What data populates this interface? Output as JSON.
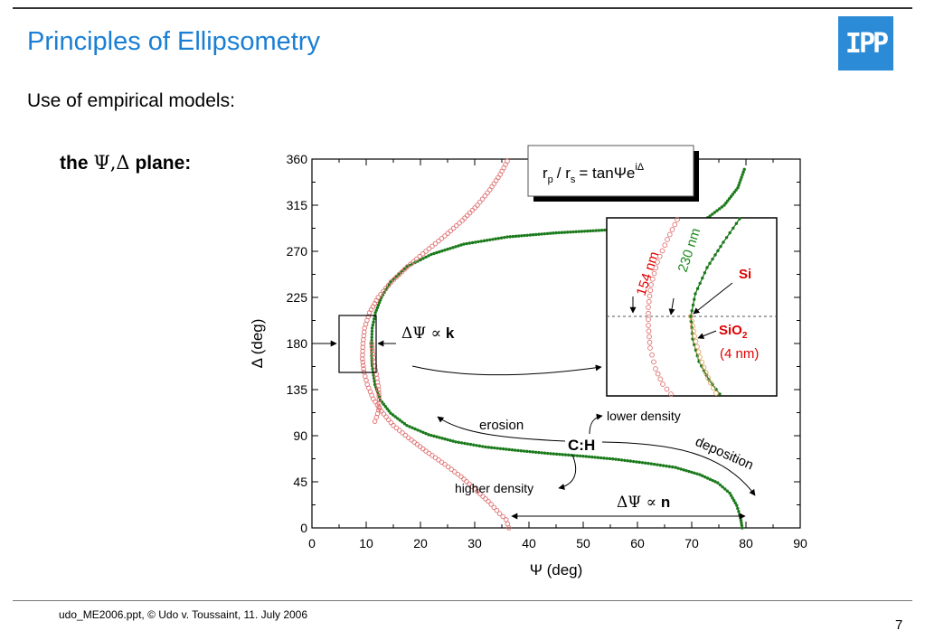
{
  "header": {
    "title": "Principles of Ellipsometry",
    "logo_text": "IPP"
  },
  "content": {
    "subtitle": "Use of empirical models:",
    "plane_label_prefix": "the",
    "plane_label_symbols": "Ψ,Δ",
    "plane_label_suffix": "plane:"
  },
  "footer": {
    "text": "udo_ME2006.ppt, © Udo v. Toussaint, 11. July 2006",
    "page": "7"
  },
  "colors": {
    "title": "#1a7fd4",
    "logo": "#2b8bd6",
    "green": "#1a7a1a",
    "red": "#e07070",
    "label_red": "#e00000",
    "label_green": "#1a8a1a"
  },
  "chart_data": {
    "type": "scatter",
    "xlabel": "Ψ (deg)",
    "ylabel": "Δ (deg)",
    "xlim": [
      0,
      90
    ],
    "ylim": [
      0,
      360
    ],
    "xticks": [
      0,
      10,
      20,
      30,
      40,
      50,
      60,
      70,
      80,
      90
    ],
    "yticks": [
      0,
      45,
      90,
      135,
      180,
      225,
      270,
      315,
      360
    ],
    "formula": {
      "lhs_r": "r",
      "lhs_sub1": "p",
      "sep": "/ r",
      "lhs_sub2": "s",
      "rhs": "= tanΨe",
      "rhs_sup": "iΔ"
    },
    "series": [
      {
        "marker": "small-filled-dot",
        "color": "#1a7a1a",
        "points": [
          [
            79.3,
            0
          ],
          [
            79.0,
            10
          ],
          [
            78.3,
            22
          ],
          [
            77.0,
            34
          ],
          [
            74.8,
            44
          ],
          [
            71.5,
            52
          ],
          [
            67.0,
            59
          ],
          [
            62.0,
            63
          ],
          [
            56.0,
            67
          ],
          [
            50.0,
            70
          ],
          [
            44.0,
            72.5
          ],
          [
            38.0,
            75.5
          ],
          [
            32.0,
            79
          ],
          [
            26.5,
            84
          ],
          [
            21.5,
            91
          ],
          [
            17.5,
            100
          ],
          [
            14.5,
            112
          ],
          [
            12.6,
            125
          ],
          [
            11.6,
            140
          ],
          [
            11.1,
            158
          ],
          [
            11.0,
            168
          ],
          [
            11.0,
            180
          ],
          [
            11.1,
            195
          ],
          [
            11.7,
            210
          ],
          [
            12.8,
            225
          ],
          [
            14.5,
            240
          ],
          [
            17.5,
            255
          ],
          [
            22.0,
            267
          ],
          [
            28.0,
            277
          ],
          [
            36.0,
            284
          ],
          [
            45.0,
            288
          ],
          [
            55.0,
            291
          ],
          [
            62.0,
            293
          ],
          [
            68.0,
            296
          ],
          [
            72.5,
            301
          ],
          [
            76.0,
            315
          ],
          [
            78.5,
            332
          ],
          [
            79.7,
            350
          ]
        ]
      },
      {
        "marker": "open-circle",
        "color": "#e07070",
        "points": [
          [
            36.3,
            0
          ],
          [
            35.8,
            8
          ],
          [
            34.6,
            14
          ],
          [
            32.5,
            26
          ],
          [
            30.0,
            38
          ],
          [
            27.5,
            50
          ],
          [
            24.5,
            62
          ],
          [
            21.0,
            75
          ],
          [
            17.8,
            88
          ],
          [
            15.0,
            100
          ],
          [
            12.8,
            114
          ],
          [
            11.3,
            126
          ],
          [
            10.2,
            140
          ],
          [
            9.6,
            152
          ],
          [
            9.3,
            165
          ],
          [
            9.4,
            180
          ],
          [
            9.7,
            195
          ],
          [
            10.6,
            210
          ],
          [
            12.2,
            225
          ],
          [
            14.6,
            240
          ],
          [
            17.6,
            255
          ],
          [
            21.0,
            270
          ],
          [
            24.5,
            285
          ],
          [
            27.7,
            300
          ],
          [
            30.5,
            315
          ],
          [
            32.8,
            330
          ],
          [
            34.7,
            345
          ],
          [
            36.0,
            358
          ]
        ]
      },
      {
        "marker": "open-circle",
        "color": "#e07070",
        "points": [
          [
            11.0,
            180
          ],
          [
            11.2,
            170
          ],
          [
            11.6,
            158
          ],
          [
            12.0,
            146
          ],
          [
            12.3,
            135
          ],
          [
            12.4,
            125
          ],
          [
            12.3,
            115
          ],
          [
            11.9,
            108
          ],
          [
            11.6,
            104
          ]
        ]
      }
    ],
    "annotations": {
      "dpsi_k": {
        "prefix": "ΔΨ ∝",
        "var": "k"
      },
      "dpsi_n": {
        "prefix": "ΔΨ ∝",
        "var": "n"
      },
      "erosion": "erosion",
      "deposition": "deposition",
      "ch": "C:H",
      "lower_density": "lower density",
      "higher_density": "higher density"
    },
    "inset": {
      "labels": {
        "nm154": "154 nm",
        "nm230": "230 nm",
        "si": "Si",
        "sio2_main": "SiO",
        "sio2_sub": "2",
        "sio2_thick": "(4 nm)"
      }
    }
  }
}
